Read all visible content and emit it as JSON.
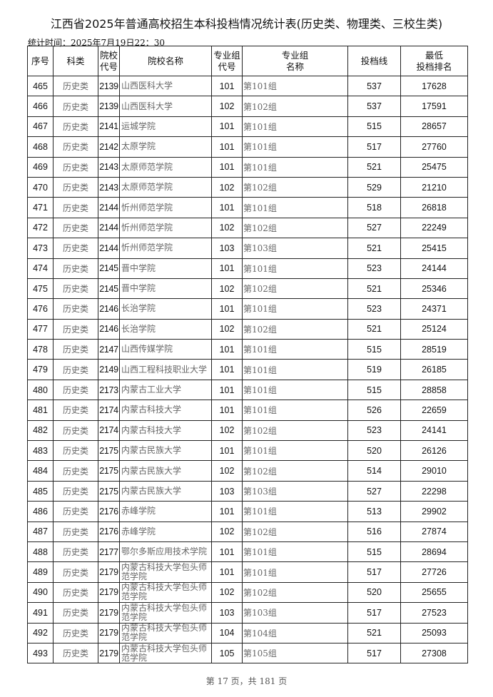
{
  "title": "江西省2025年普通高校招生本科投档情况统计表(历史类、物理类、三校生类)",
  "stat_time": "统计时间：2025年7月19日22：30",
  "headers": {
    "seq": "序号",
    "category": "科类",
    "school_code_1": "院校",
    "school_code_2": "代号",
    "school_name": "院校名称",
    "group_code_1": "专业组",
    "group_code_2": "代号",
    "group_name_1": "专业组",
    "group_name_2": "名称",
    "score": "投档线",
    "rank_1": "最低",
    "rank_2": "投档排名"
  },
  "rows": [
    [
      "465",
      "历史类",
      "2139",
      "山西医科大学",
      "101",
      "第101组",
      "537",
      "17628"
    ],
    [
      "466",
      "历史类",
      "2139",
      "山西医科大学",
      "102",
      "第102组",
      "537",
      "17591"
    ],
    [
      "467",
      "历史类",
      "2141",
      "运城学院",
      "101",
      "第101组",
      "515",
      "28657"
    ],
    [
      "468",
      "历史类",
      "2142",
      "太原学院",
      "101",
      "第101组",
      "517",
      "27760"
    ],
    [
      "469",
      "历史类",
      "2143",
      "太原师范学院",
      "101",
      "第101组",
      "521",
      "25475"
    ],
    [
      "470",
      "历史类",
      "2143",
      "太原师范学院",
      "102",
      "第102组",
      "529",
      "21210"
    ],
    [
      "471",
      "历史类",
      "2144",
      "忻州师范学院",
      "101",
      "第101组",
      "518",
      "26818"
    ],
    [
      "472",
      "历史类",
      "2144",
      "忻州师范学院",
      "102",
      "第102组",
      "527",
      "22249"
    ],
    [
      "473",
      "历史类",
      "2144",
      "忻州师范学院",
      "103",
      "第103组",
      "521",
      "25415"
    ],
    [
      "474",
      "历史类",
      "2145",
      "晋中学院",
      "101",
      "第101组",
      "523",
      "24144"
    ],
    [
      "475",
      "历史类",
      "2145",
      "晋中学院",
      "102",
      "第102组",
      "521",
      "25346"
    ],
    [
      "476",
      "历史类",
      "2146",
      "长治学院",
      "101",
      "第101组",
      "523",
      "24371"
    ],
    [
      "477",
      "历史类",
      "2146",
      "长治学院",
      "102",
      "第102组",
      "521",
      "25124"
    ],
    [
      "478",
      "历史类",
      "2147",
      "山西传媒学院",
      "101",
      "第101组",
      "515",
      "28519"
    ],
    [
      "479",
      "历史类",
      "2149",
      "山西工程科技职业大学",
      "101",
      "第101组",
      "519",
      "26185"
    ],
    [
      "480",
      "历史类",
      "2173",
      "内蒙古工业大学",
      "101",
      "第101组",
      "515",
      "28858"
    ],
    [
      "481",
      "历史类",
      "2174",
      "内蒙古科技大学",
      "101",
      "第101组",
      "526",
      "22659"
    ],
    [
      "482",
      "历史类",
      "2174",
      "内蒙古科技大学",
      "102",
      "第102组",
      "523",
      "24141"
    ],
    [
      "483",
      "历史类",
      "2175",
      "内蒙古民族大学",
      "101",
      "第101组",
      "520",
      "26126"
    ],
    [
      "484",
      "历史类",
      "2175",
      "内蒙古民族大学",
      "102",
      "第102组",
      "514",
      "29010"
    ],
    [
      "485",
      "历史类",
      "2175",
      "内蒙古民族大学",
      "103",
      "第103组",
      "527",
      "22298"
    ],
    [
      "486",
      "历史类",
      "2176",
      "赤峰学院",
      "101",
      "第101组",
      "513",
      "29902"
    ],
    [
      "487",
      "历史类",
      "2176",
      "赤峰学院",
      "102",
      "第102组",
      "516",
      "27874"
    ],
    [
      "488",
      "历史类",
      "2177",
      "鄂尔多斯应用技术学院",
      "101",
      "第101组",
      "515",
      "28694"
    ],
    [
      "489",
      "历史类",
      "2179",
      "内蒙古科技大学包头师范学院",
      "101",
      "第101组",
      "517",
      "27726"
    ],
    [
      "490",
      "历史类",
      "2179",
      "内蒙古科技大学包头师范学院",
      "102",
      "第102组",
      "520",
      "25655"
    ],
    [
      "491",
      "历史类",
      "2179",
      "内蒙古科技大学包头师范学院",
      "103",
      "第103组",
      "517",
      "27523"
    ],
    [
      "492",
      "历史类",
      "2179",
      "内蒙古科技大学包头师范学院",
      "104",
      "第104组",
      "521",
      "25093"
    ],
    [
      "493",
      "历史类",
      "2179",
      "内蒙古科技大学包头师范学院",
      "105",
      "第105组",
      "517",
      "27308"
    ]
  ],
  "footer": "第 17 页，共 181 页"
}
